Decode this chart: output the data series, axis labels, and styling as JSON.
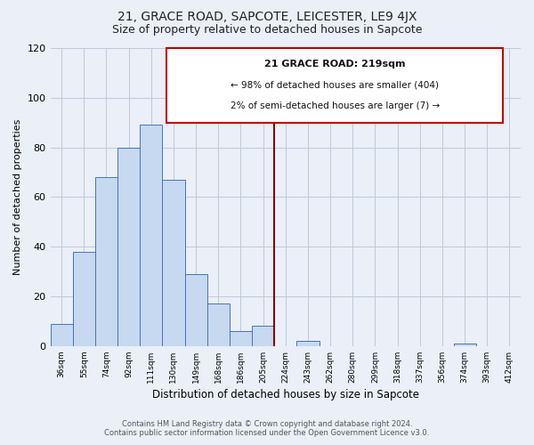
{
  "title": "21, GRACE ROAD, SAPCOTE, LEICESTER, LE9 4JX",
  "subtitle": "Size of property relative to detached houses in Sapcote",
  "xlabel": "Distribution of detached houses by size in Sapcote",
  "ylabel": "Number of detached properties",
  "bin_labels": [
    "36sqm",
    "55sqm",
    "74sqm",
    "92sqm",
    "111sqm",
    "130sqm",
    "149sqm",
    "168sqm",
    "186sqm",
    "205sqm",
    "224sqm",
    "243sqm",
    "262sqm",
    "280sqm",
    "299sqm",
    "318sqm",
    "337sqm",
    "356sqm",
    "374sqm",
    "393sqm",
    "412sqm"
  ],
  "bar_heights": [
    9,
    38,
    68,
    80,
    89,
    67,
    29,
    17,
    6,
    8,
    0,
    2,
    0,
    0,
    0,
    0,
    0,
    0,
    1,
    0,
    0
  ],
  "bar_color": "#c6d9f0",
  "bar_edge_color": "#4472c4",
  "bg_color": "#eaeff8",
  "grid_color": "#c0c8d8",
  "vline_color": "#8b0000",
  "annotation_title": "21 GRACE ROAD: 219sqm",
  "annotation_line1": "← 98% of detached houses are smaller (404)",
  "annotation_line2": "2% of semi-detached houses are larger (7) →",
  "annotation_box_color": "#ffffff",
  "annotation_border_color": "#c00000",
  "footnote1": "Contains HM Land Registry data © Crown copyright and database right 2024.",
  "footnote2": "Contains public sector information licensed under the Open Government Licence v3.0.",
  "ylim": [
    0,
    120
  ],
  "title_fontsize": 10,
  "subtitle_fontsize": 9
}
